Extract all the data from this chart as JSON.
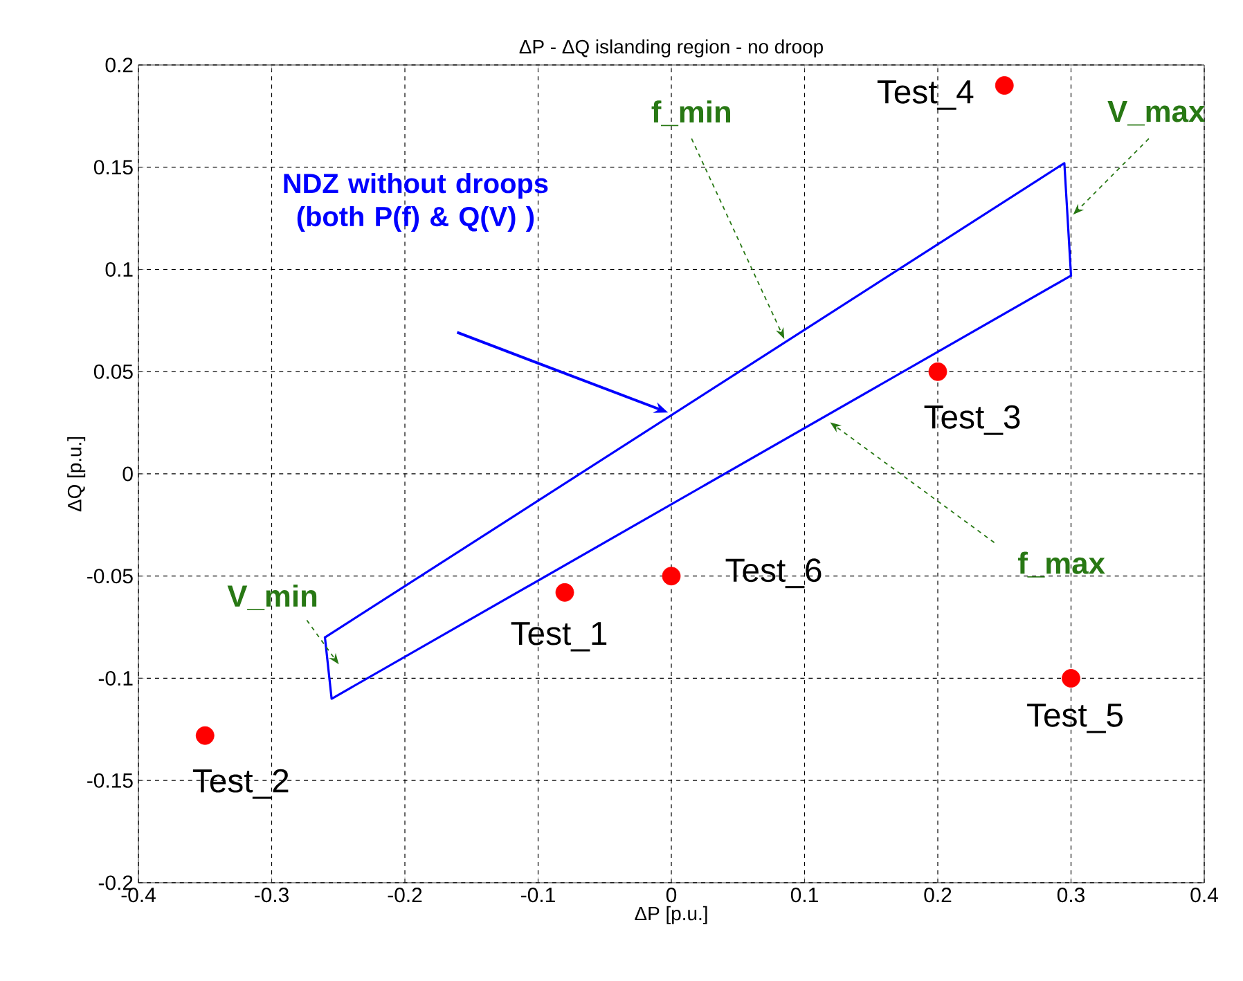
{
  "chart_data": {
    "type": "scatter",
    "title": "ΔP - ΔQ islanding region - no droop",
    "xlabel": "ΔP [p.u.]",
    "ylabel": "ΔQ [p.u.]",
    "xlim": [
      -0.4,
      0.4
    ],
    "ylim": [
      -0.2,
      0.2
    ],
    "xticks": [
      -0.4,
      -0.3,
      -0.2,
      -0.1,
      0,
      0.1,
      0.2,
      0.3,
      0.4
    ],
    "yticks": [
      -0.2,
      -0.15,
      -0.1,
      -0.05,
      0,
      0.05,
      0.1,
      0.15,
      0.2
    ],
    "grid": true,
    "series": [
      {
        "type": "line",
        "color": "#0000ff",
        "x": [
          -0.26,
          0.295,
          0.3
        ],
        "values": [
          -0.08,
          0.152,
          0.097
        ]
      },
      {
        "type": "line",
        "color": "#0000ff",
        "x": [
          -0.26,
          -0.255,
          0.3
        ],
        "values": [
          -0.08,
          -0.11,
          0.097
        ]
      },
      {
        "color": "#ff0000",
        "marker": "circle",
        "x": [
          -0.08,
          -0.35,
          0.2,
          0.25,
          0.3,
          0
        ],
        "values": [
          -0.058,
          -0.128,
          0.05,
          0.19,
          -0.1,
          -0.05
        ]
      }
    ],
    "annotations": [
      {
        "text": "Test_1",
        "x": -0.08,
        "y": -0.058
      },
      {
        "text": "Test_2",
        "x": -0.35,
        "y": -0.128
      },
      {
        "text": "Test_3",
        "x": 0.2,
        "y": 0.05
      },
      {
        "text": "Test_4",
        "x": 0.25,
        "y": 0.19
      },
      {
        "text": "Test_5",
        "x": 0.3,
        "y": -0.1
      },
      {
        "text": "Test_6",
        "x": 0,
        "y": -0.05
      },
      "NDZ without droops (both P(f) & Q(V) )",
      "f_min",
      "V_max",
      "V_min",
      "f_max"
    ]
  }
}
